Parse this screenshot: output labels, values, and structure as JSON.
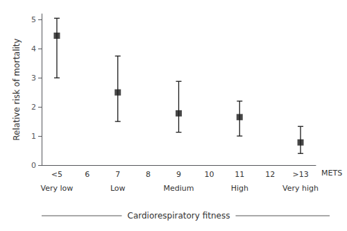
{
  "chart_data": {
    "type": "scatter",
    "ylabel": "Relative risk of mortality",
    "xlabel": "METS",
    "categories": [
      "<5",
      "6",
      "7",
      "8",
      "9",
      "10",
      "11",
      "12",
      ">13"
    ],
    "values": [
      4.45,
      null,
      2.5,
      null,
      1.78,
      null,
      1.65,
      null,
      0.78
    ],
    "error_upper": [
      0.6,
      null,
      1.25,
      null,
      1.1,
      null,
      0.55,
      null,
      0.55
    ],
    "error_lower": [
      1.45,
      null,
      1.0,
      null,
      0.65,
      null,
      0.65,
      null,
      0.38
    ],
    "group_labels": [
      "Very low",
      null,
      "Low",
      null,
      "Medium",
      null,
      "High",
      null,
      "Very high"
    ],
    "group_title": "Cardiorespiratory fitness",
    "ylim": [
      0,
      5.2
    ],
    "yticks": [
      0,
      1,
      2,
      3,
      4,
      5
    ],
    "color": "#1a1a1a",
    "marker": "square",
    "grid": false
  }
}
